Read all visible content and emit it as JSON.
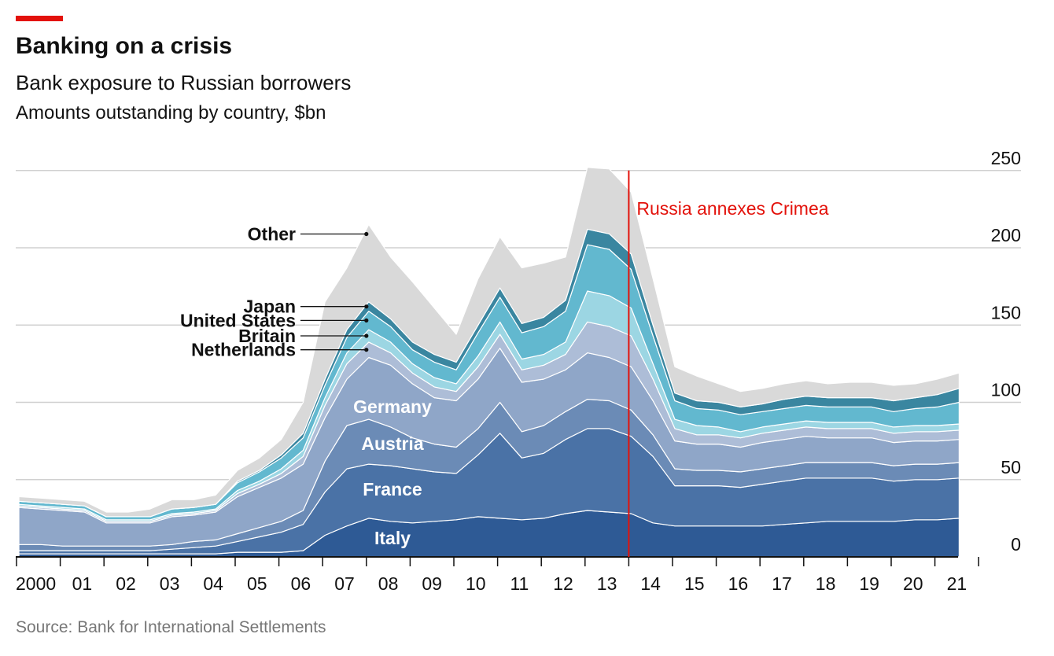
{
  "header": {
    "title": "Banking on a crisis",
    "subtitle": "Bank exposure to Russian borrowers",
    "units": "Amounts outstanding by country, $bn"
  },
  "footer": {
    "source": "Source: Bank for International Settlements"
  },
  "colors": {
    "accent": "#e3120b",
    "Italy": "#2e5a95",
    "France": "#4a72a6",
    "Austria": "#6b8bb6",
    "Germany": "#8fa6c8",
    "Netherlands": "#adbdd7",
    "Britain": "#9cd6e3",
    "United States": "#62b8cf",
    "Japan": "#3a86a0",
    "Other": "#d9d9d9"
  },
  "chart_data": {
    "type": "area",
    "stacked": true,
    "ylim": [
      0,
      250
    ],
    "yticks": [
      0,
      50,
      100,
      150,
      200,
      250
    ],
    "grid": true,
    "xtick_labels": [
      "2000",
      "01",
      "02",
      "03",
      "04",
      "05",
      "06",
      "07",
      "08",
      "09",
      "10",
      "11",
      "12",
      "13",
      "14",
      "15",
      "16",
      "17",
      "18",
      "19",
      "20",
      "21"
    ],
    "x": [
      2000.0,
      2000.5,
      2001.0,
      2001.5,
      2002.0,
      2002.5,
      2003.0,
      2003.5,
      2004.0,
      2004.5,
      2005.0,
      2005.5,
      2006.0,
      2006.5,
      2007.0,
      2007.5,
      2008.0,
      2008.5,
      2009.0,
      2009.5,
      2010.0,
      2010.5,
      2011.0,
      2011.5,
      2012.0,
      2012.5,
      2013.0,
      2013.5,
      2014.0,
      2014.5,
      2015.0,
      2015.5,
      2016.0,
      2016.5,
      2017.0,
      2017.5,
      2018.0,
      2018.5,
      2019.0,
      2019.5,
      2020.0,
      2020.5,
      2021.0,
      2021.5
    ],
    "series": [
      {
        "name": "Italy",
        "values": [
          2,
          2,
          2,
          2,
          2,
          2,
          2,
          2,
          2,
          2,
          3,
          3,
          3,
          4,
          14,
          20,
          25,
          23,
          22,
          23,
          24,
          26,
          25,
          24,
          25,
          28,
          30,
          29,
          28,
          22,
          20,
          20,
          20,
          20,
          20,
          21,
          22,
          23,
          23,
          23,
          23,
          24,
          24,
          25
        ]
      },
      {
        "name": "France",
        "values": [
          2,
          2,
          2,
          2,
          2,
          2,
          2,
          3,
          4,
          5,
          7,
          10,
          13,
          17,
          28,
          37,
          35,
          36,
          35,
          32,
          30,
          40,
          55,
          40,
          42,
          48,
          53,
          54,
          50,
          43,
          26,
          26,
          26,
          25,
          27,
          28,
          29,
          28,
          28,
          28,
          26,
          26,
          26,
          26
        ]
      },
      {
        "name": "Austria",
        "values": [
          4,
          4,
          3,
          3,
          3,
          3,
          3,
          3,
          4,
          4,
          5,
          6,
          7,
          9,
          20,
          28,
          29,
          25,
          20,
          18,
          17,
          17,
          20,
          17,
          18,
          18,
          19,
          18,
          17,
          14,
          11,
          10,
          10,
          10,
          10,
          10,
          10,
          10,
          10,
          10,
          10,
          10,
          10,
          10
        ]
      },
      {
        "name": "Germany",
        "values": [
          24,
          23,
          23,
          22,
          15,
          15,
          15,
          18,
          17,
          18,
          24,
          26,
          28,
          30,
          28,
          30,
          40,
          40,
          35,
          30,
          30,
          32,
          35,
          32,
          30,
          27,
          30,
          28,
          28,
          22,
          18,
          17,
          17,
          16,
          17,
          17,
          17,
          16,
          16,
          16,
          15,
          15,
          15,
          15
        ]
      },
      {
        "name": "Netherlands",
        "values": [
          1,
          1,
          1,
          1,
          1,
          1,
          1,
          1,
          1,
          1,
          2,
          2,
          3,
          5,
          8,
          10,
          10,
          8,
          7,
          7,
          6,
          8,
          9,
          8,
          9,
          10,
          20,
          20,
          20,
          14,
          8,
          6,
          6,
          6,
          6,
          6,
          6,
          6,
          6,
          6,
          6,
          6,
          6,
          6
        ]
      },
      {
        "name": "Britain",
        "values": [
          1,
          1,
          1,
          1,
          1,
          1,
          1,
          1,
          1,
          1,
          2,
          2,
          3,
          4,
          5,
          7,
          8,
          7,
          6,
          6,
          5,
          7,
          8,
          7,
          7,
          8,
          20,
          20,
          18,
          10,
          6,
          6,
          5,
          4,
          4,
          4,
          4,
          4,
          4,
          4,
          4,
          4,
          4,
          4
        ]
      },
      {
        "name": "United States",
        "values": [
          2,
          2,
          2,
          2,
          2,
          2,
          2,
          3,
          3,
          3,
          5,
          6,
          7,
          8,
          8,
          10,
          12,
          10,
          9,
          10,
          9,
          15,
          16,
          17,
          18,
          20,
          30,
          30,
          25,
          18,
          12,
          11,
          11,
          11,
          10,
          10,
          10,
          10,
          10,
          10,
          10,
          11,
          12,
          14
        ]
      },
      {
        "name": "Japan",
        "values": [
          0,
          0,
          0,
          0,
          0,
          0,
          0,
          0,
          0,
          0,
          1,
          1,
          2,
          3,
          4,
          5,
          6,
          5,
          5,
          5,
          5,
          5,
          6,
          6,
          6,
          7,
          10,
          10,
          10,
          7,
          5,
          5,
          5,
          5,
          5,
          6,
          6,
          6,
          6,
          6,
          7,
          7,
          8,
          9
        ]
      },
      {
        "name": "Other",
        "values": [
          3,
          3,
          3,
          3,
          3,
          3,
          5,
          6,
          5,
          6,
          7,
          8,
          10,
          20,
          50,
          40,
          50,
          40,
          39,
          30,
          18,
          30,
          33,
          36,
          35,
          28,
          40,
          42,
          40,
          30,
          17,
          16,
          12,
          10,
          10,
          10,
          10,
          9,
          10,
          10,
          10,
          9,
          10,
          10
        ]
      }
    ],
    "annotations": [
      {
        "x": 2014.0,
        "text": "Russia annexes Crimea"
      }
    ]
  }
}
